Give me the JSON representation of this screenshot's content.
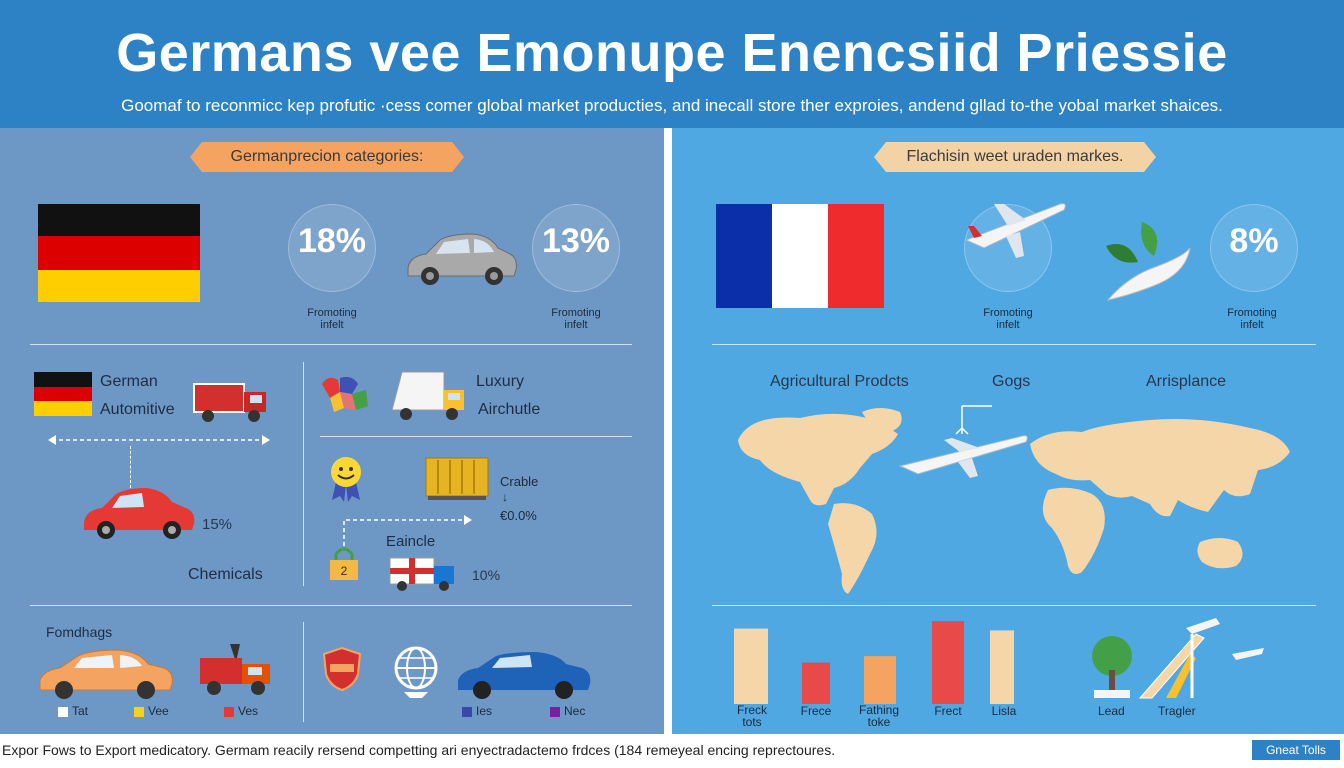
{
  "header": {
    "title": "Germans vee Emonupe Enencsiid Priessie",
    "subtitle": "Goomaf to reconmicc kep profutic ·cess comer global market producties, and inecall store ther exproies, andend gllad to-the yobal market shaices."
  },
  "left": {
    "ribbon": "Germanprecion categories:",
    "stats": [
      {
        "value": "18%",
        "caption_1": "Fromoting",
        "caption_2": "infelt"
      },
      {
        "value": "13%",
        "caption_1": "Fromoting",
        "caption_2": "infelt"
      }
    ],
    "labels": {
      "german": "German",
      "automotive": "Automitive",
      "luxury": "Luxury",
      "arichutle": "Airchutle",
      "pct_15": "15%",
      "chemicals": "Chemicals",
      "crable": "Crable",
      "crable_arrow": "↓",
      "crable_pct": "€0.0%",
      "eancle": "Eaincle",
      "pct_10": "10%",
      "fomdhags": "Fomdhags"
    },
    "legend": [
      {
        "label": "Tat",
        "color": "#ffffff"
      },
      {
        "label": "Vee",
        "color": "#f2d21c"
      },
      {
        "label": "Ves",
        "color": "#e53935"
      },
      {
        "label": "Ies",
        "color": "#3949ab"
      },
      {
        "label": "Nec",
        "color": "#7b1fa2"
      }
    ]
  },
  "right": {
    "ribbon": "Flachisin weet uraden markes.",
    "stats": [
      {
        "caption_1": "Fromoting",
        "caption_2": "infelt"
      },
      {
        "value": "8%",
        "caption_1": "Fromoting",
        "caption_2": "infelt"
      }
    ],
    "labels": {
      "agricultural": "Agricultural Prodcts",
      "gogs": "Gogs",
      "arrisplance": "Arrisplance"
    },
    "bars": [
      {
        "label_1": "Freck",
        "label_2": "tots",
        "color": "#f5d6a8",
        "value": 0.82
      },
      {
        "label_1": "Frece",
        "label_2": "",
        "color": "#e84a4a",
        "value": 0.45
      },
      {
        "label_1": "Fathing",
        "label_2": "toke",
        "color": "#f4a460",
        "value": 0.52
      },
      {
        "label_1": "Frect",
        "label_2": "",
        "color": "#e84a4a",
        "value": 0.9
      },
      {
        "label_1": "Lisla",
        "label_2": "",
        "color": "#f5d6a8",
        "value": 0.8
      }
    ],
    "icon_labels": {
      "lead": "Lead",
      "tragur": "Tragler"
    }
  },
  "footer": {
    "text": "Expor Fows to Export medicatory. Germam reacily rersend competting ari enyectradactemo frdces (184 remeyeal encing reprectoures.",
    "button": "Gneat Tolls"
  },
  "colors": {
    "header": "#2c82c4",
    "left_panel": "#6d98c5",
    "right_panel": "#4fa8e2",
    "ribbon_left": "#f4a460",
    "ribbon_right": "#f3d2a6",
    "map_land": "#f5d6a8",
    "accent_red": "#e84a4a"
  },
  "icons": [
    "german-flag-icon",
    "french-flag-icon",
    "car-icon",
    "truck-icon",
    "globe-icon",
    "world-map-icon",
    "airplane-icon",
    "plant-icon",
    "smiley-icon",
    "badge-icon",
    "container-icon"
  ]
}
